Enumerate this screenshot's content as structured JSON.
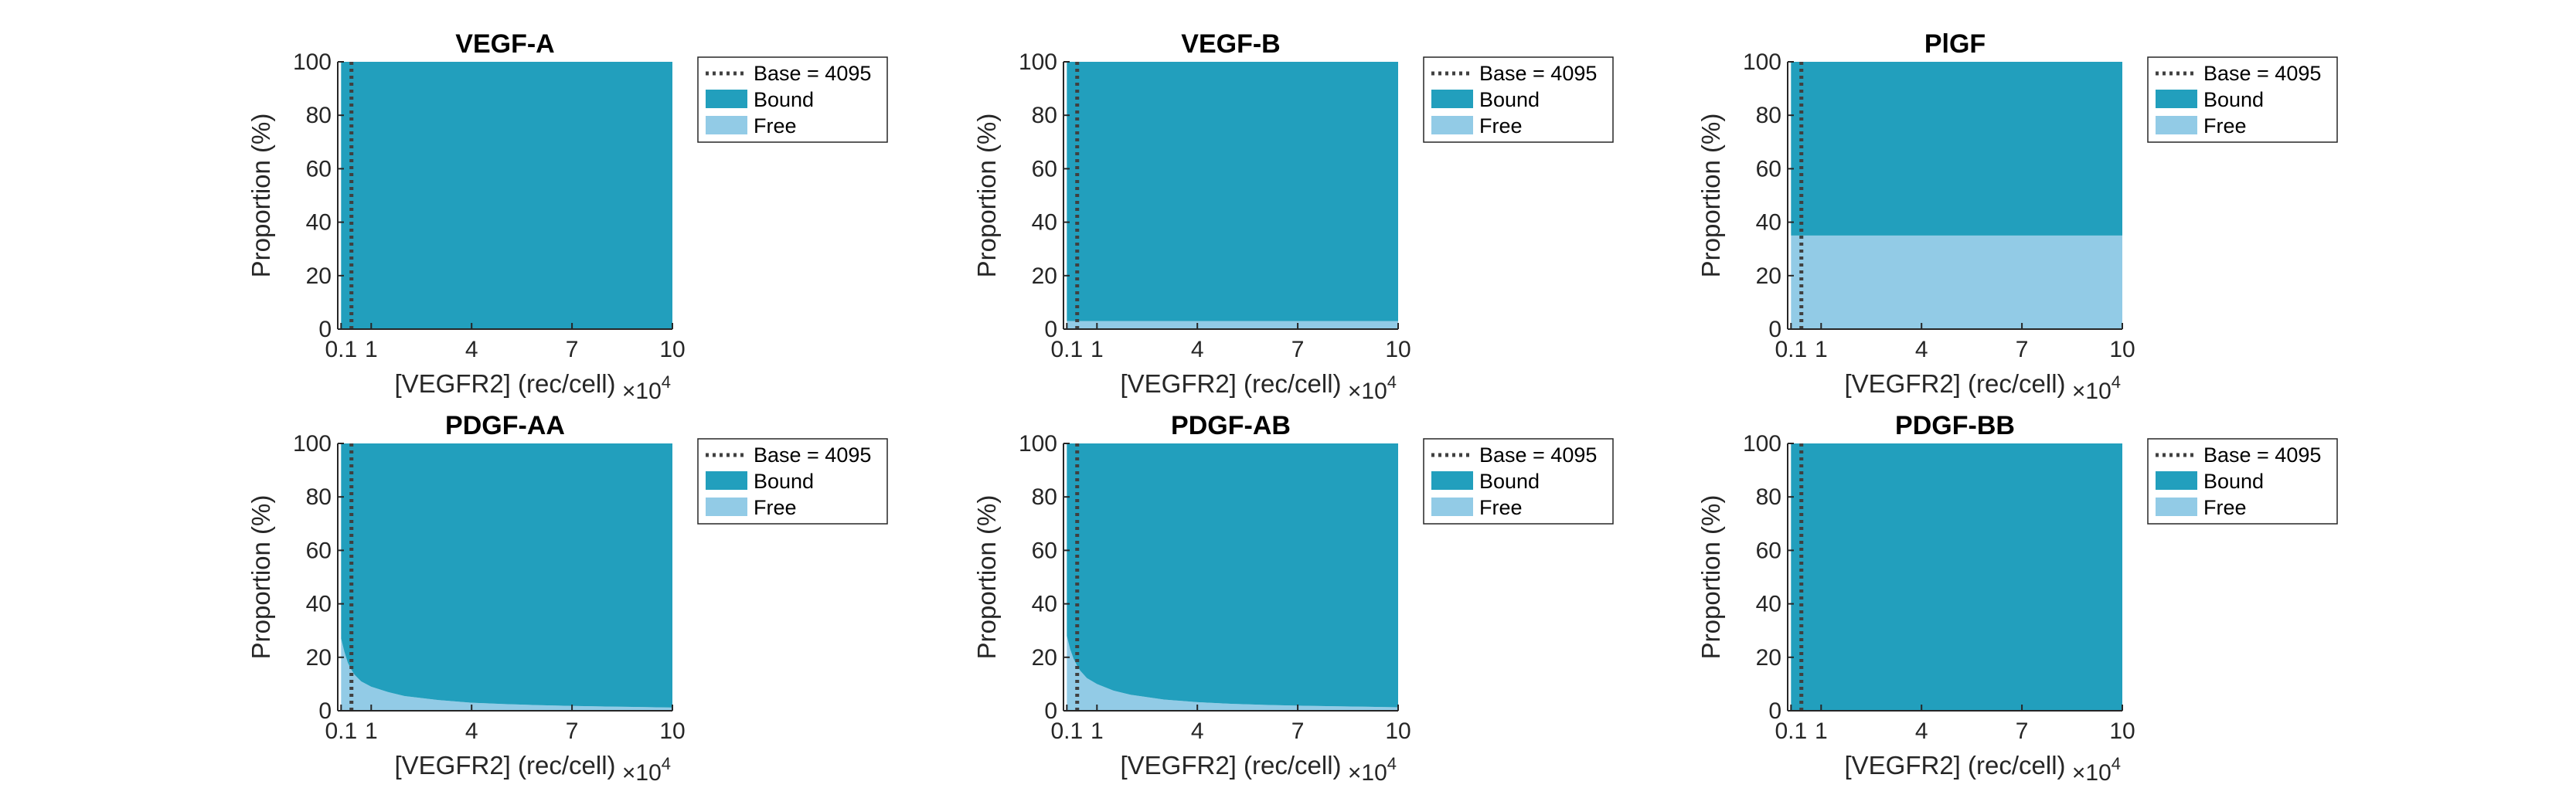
{
  "colors": {
    "bound": "#229fbd",
    "free": "#92cbe6",
    "base_line": "#404040",
    "axis": "#262626"
  },
  "chart_data": [
    {
      "type": "area",
      "title": "VEGF-A",
      "xlabel": "[VEGFR2] (rec/cell)",
      "xexponent": "×10",
      "xexponent_power": "4",
      "ylabel": "Proportion (%)",
      "xlim": [
        0,
        10
      ],
      "ylim": [
        0,
        100
      ],
      "xticks": [
        {
          "value": 0.1,
          "label": "0.1"
        },
        {
          "value": 1,
          "label": "1"
        },
        {
          "value": 4,
          "label": "4"
        },
        {
          "value": 7,
          "label": "7"
        },
        {
          "value": 10,
          "label": "10"
        }
      ],
      "yticks": [
        {
          "value": 0,
          "label": "0"
        },
        {
          "value": 20,
          "label": "20"
        },
        {
          "value": 40,
          "label": "40"
        },
        {
          "value": 60,
          "label": "60"
        },
        {
          "value": 80,
          "label": "80"
        },
        {
          "value": 100,
          "label": "100"
        }
      ],
      "base_line": {
        "x": 0.4095,
        "label": "Base = 4095"
      },
      "legend_position": "outside-top-right",
      "x": [
        0.1,
        0.2,
        0.3,
        0.5,
        1,
        2,
        4,
        7,
        10
      ],
      "series": [
        {
          "name": "Bound",
          "values": [
            100,
            100,
            100,
            100,
            100,
            100,
            100,
            100,
            100
          ]
        },
        {
          "name": "Free",
          "values": [
            0,
            0,
            0,
            0,
            0,
            0,
            0,
            0,
            0
          ]
        }
      ]
    },
    {
      "type": "area",
      "title": "VEGF-B",
      "xlabel": "[VEGFR2] (rec/cell)",
      "xexponent": "×10",
      "xexponent_power": "4",
      "ylabel": "Proportion (%)",
      "xlim": [
        0,
        10
      ],
      "ylim": [
        0,
        100
      ],
      "xticks": [
        {
          "value": 0.1,
          "label": "0.1"
        },
        {
          "value": 1,
          "label": "1"
        },
        {
          "value": 4,
          "label": "4"
        },
        {
          "value": 7,
          "label": "7"
        },
        {
          "value": 10,
          "label": "10"
        }
      ],
      "yticks": [
        {
          "value": 0,
          "label": "0"
        },
        {
          "value": 20,
          "label": "20"
        },
        {
          "value": 40,
          "label": "40"
        },
        {
          "value": 60,
          "label": "60"
        },
        {
          "value": 80,
          "label": "80"
        },
        {
          "value": 100,
          "label": "100"
        }
      ],
      "base_line": {
        "x": 0.4095,
        "label": "Base = 4095"
      },
      "legend_position": "outside-top-right",
      "x": [
        0.1,
        0.2,
        0.3,
        0.5,
        1,
        2,
        4,
        7,
        10
      ],
      "series": [
        {
          "name": "Bound",
          "values": [
            97,
            97,
            97,
            97,
            97,
            97,
            97,
            97,
            97
          ]
        },
        {
          "name": "Free",
          "values": [
            3,
            3,
            3,
            3,
            3,
            3,
            3,
            3,
            3
          ]
        }
      ]
    },
    {
      "type": "area",
      "title": "PlGF",
      "xlabel": "[VEGFR2] (rec/cell)",
      "xexponent": "×10",
      "xexponent_power": "4",
      "ylabel": "Proportion (%)",
      "xlim": [
        0,
        10
      ],
      "ylim": [
        0,
        100
      ],
      "xticks": [
        {
          "value": 0.1,
          "label": "0.1"
        },
        {
          "value": 1,
          "label": "1"
        },
        {
          "value": 4,
          "label": "4"
        },
        {
          "value": 7,
          "label": "7"
        },
        {
          "value": 10,
          "label": "10"
        }
      ],
      "yticks": [
        {
          "value": 0,
          "label": "0"
        },
        {
          "value": 20,
          "label": "20"
        },
        {
          "value": 40,
          "label": "40"
        },
        {
          "value": 60,
          "label": "60"
        },
        {
          "value": 80,
          "label": "80"
        },
        {
          "value": 100,
          "label": "100"
        }
      ],
      "base_line": {
        "x": 0.4095,
        "label": "Base = 4095"
      },
      "legend_position": "outside-top-right",
      "x": [
        0.1,
        0.2,
        0.3,
        0.5,
        1,
        2,
        4,
        7,
        10
      ],
      "series": [
        {
          "name": "Bound",
          "values": [
            65,
            65,
            65,
            65,
            65,
            65,
            65,
            65,
            65
          ]
        },
        {
          "name": "Free",
          "values": [
            35,
            35,
            35,
            35,
            35,
            35,
            35,
            35,
            35
          ]
        }
      ]
    },
    {
      "type": "area",
      "title": "PDGF-AA",
      "xlabel": "[VEGFR2] (rec/cell)",
      "xexponent": "×10",
      "xexponent_power": "4",
      "ylabel": "Proportion (%)",
      "xlim": [
        0,
        10
      ],
      "ylim": [
        0,
        100
      ],
      "xticks": [
        {
          "value": 0.1,
          "label": "0.1"
        },
        {
          "value": 1,
          "label": "1"
        },
        {
          "value": 4,
          "label": "4"
        },
        {
          "value": 7,
          "label": "7"
        },
        {
          "value": 10,
          "label": "10"
        }
      ],
      "yticks": [
        {
          "value": 0,
          "label": "0"
        },
        {
          "value": 20,
          "label": "20"
        },
        {
          "value": 40,
          "label": "40"
        },
        {
          "value": 60,
          "label": "60"
        },
        {
          "value": 80,
          "label": "80"
        },
        {
          "value": 100,
          "label": "100"
        }
      ],
      "base_line": {
        "x": 0.4095,
        "label": "Base = 4095"
      },
      "legend_position": "outside-top-right",
      "x": [
        0.1,
        0.2,
        0.3,
        0.4,
        0.5,
        0.7,
        1,
        1.5,
        2,
        3,
        4,
        5,
        6,
        7,
        8,
        9,
        10
      ],
      "series": [
        {
          "name": "Bound",
          "values": [
            73,
            78,
            82,
            84.5,
            86.5,
            89,
            91,
            93,
            94.5,
            96,
            97,
            97.5,
            97.9,
            98.2,
            98.4,
            98.6,
            98.8
          ]
        },
        {
          "name": "Free",
          "values": [
            27,
            22,
            18,
            15.5,
            13.5,
            11,
            9,
            7,
            5.5,
            4,
            3,
            2.5,
            2.1,
            1.8,
            1.6,
            1.4,
            1.2
          ]
        }
      ]
    },
    {
      "type": "area",
      "title": "PDGF-AB",
      "xlabel": "[VEGFR2] (rec/cell)",
      "xexponent": "×10",
      "xexponent_power": "4",
      "ylabel": "Proportion (%)",
      "xlim": [
        0,
        10
      ],
      "ylim": [
        0,
        100
      ],
      "xticks": [
        {
          "value": 0.1,
          "label": "0.1"
        },
        {
          "value": 1,
          "label": "1"
        },
        {
          "value": 4,
          "label": "4"
        },
        {
          "value": 7,
          "label": "7"
        },
        {
          "value": 10,
          "label": "10"
        }
      ],
      "yticks": [
        {
          "value": 0,
          "label": "0"
        },
        {
          "value": 20,
          "label": "20"
        },
        {
          "value": 40,
          "label": "40"
        },
        {
          "value": 60,
          "label": "60"
        },
        {
          "value": 80,
          "label": "80"
        },
        {
          "value": 100,
          "label": "100"
        }
      ],
      "base_line": {
        "x": 0.4095,
        "label": "Base = 4095"
      },
      "legend_position": "outside-top-right",
      "x": [
        0.1,
        0.2,
        0.3,
        0.4,
        0.5,
        0.7,
        1,
        1.5,
        2,
        3,
        4,
        5,
        6,
        7,
        8,
        9,
        10
      ],
      "series": [
        {
          "name": "Bound",
          "values": [
            72,
            77,
            80.5,
            83,
            85,
            87.8,
            90,
            92.5,
            94,
            95.8,
            96.8,
            97.4,
            97.8,
            98.1,
            98.3,
            98.5,
            98.7
          ]
        },
        {
          "name": "Free",
          "values": [
            28,
            23,
            19.5,
            17,
            15,
            12.2,
            10,
            7.5,
            6,
            4.2,
            3.2,
            2.6,
            2.2,
            1.9,
            1.7,
            1.5,
            1.3
          ]
        }
      ]
    },
    {
      "type": "area",
      "title": "PDGF-BB",
      "xlabel": "[VEGFR2] (rec/cell)",
      "xexponent": "×10",
      "xexponent_power": "4",
      "ylabel": "Proportion (%)",
      "xlim": [
        0,
        10
      ],
      "ylim": [
        0,
        100
      ],
      "xticks": [
        {
          "value": 0.1,
          "label": "0.1"
        },
        {
          "value": 1,
          "label": "1"
        },
        {
          "value": 4,
          "label": "4"
        },
        {
          "value": 7,
          "label": "7"
        },
        {
          "value": 10,
          "label": "10"
        }
      ],
      "yticks": [
        {
          "value": 0,
          "label": "0"
        },
        {
          "value": 20,
          "label": "20"
        },
        {
          "value": 40,
          "label": "40"
        },
        {
          "value": 60,
          "label": "60"
        },
        {
          "value": 80,
          "label": "80"
        },
        {
          "value": 100,
          "label": "100"
        }
      ],
      "base_line": {
        "x": 0.4095,
        "label": "Base = 4095"
      },
      "legend_position": "outside-top-right",
      "x": [
        0.1,
        0.2,
        0.3,
        0.5,
        1,
        2,
        4,
        7,
        10
      ],
      "series": [
        {
          "name": "Bound",
          "values": [
            100,
            100,
            100,
            100,
            100,
            100,
            100,
            100,
            100
          ]
        },
        {
          "name": "Free",
          "values": [
            0,
            0,
            0,
            0,
            0,
            0,
            0,
            0,
            0
          ]
        }
      ]
    }
  ]
}
